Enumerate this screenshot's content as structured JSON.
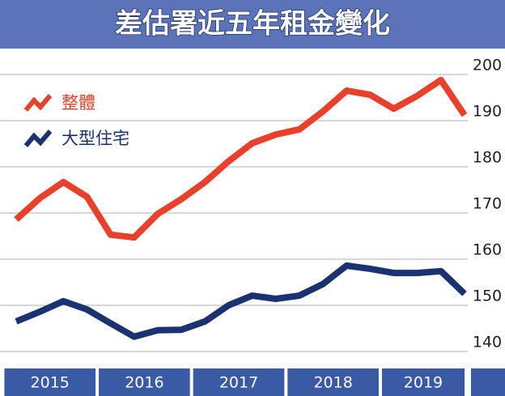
{
  "chart_data": {
    "type": "line",
    "title": "差估署近五年租金變化",
    "categories": [
      null,
      null,
      null,
      null,
      null,
      null,
      null,
      null,
      null,
      null,
      null,
      null,
      null,
      null,
      null,
      null,
      null,
      null,
      null,
      null
    ],
    "x_groups": [
      "2015",
      "2016",
      "2017",
      "2018",
      "2019"
    ],
    "series": [
      {
        "name": "整體",
        "color": "#e8402a",
        "values": [
          168.6,
          173.2,
          176.7,
          173.5,
          165.3,
          164.7,
          169.8,
          173.0,
          176.7,
          181.2,
          185.1,
          187.0,
          188.1,
          192.0,
          196.5,
          195.6,
          192.6,
          195.4,
          198.8,
          191.2
        ]
      },
      {
        "name": "大型住宅",
        "color": "#1a3370",
        "values": [
          146.5,
          148.6,
          150.9,
          149.1,
          146.1,
          143.2,
          144.6,
          144.7,
          146.5,
          150.0,
          152.1,
          151.4,
          152.1,
          154.6,
          158.6,
          157.9,
          157.0,
          157.0,
          157.4,
          152.5
        ]
      }
    ],
    "ylim": [
      140,
      200
    ],
    "yticks": [
      140,
      150,
      160,
      170,
      180,
      190,
      200
    ],
    "grid": true,
    "legend": "top-left"
  }
}
